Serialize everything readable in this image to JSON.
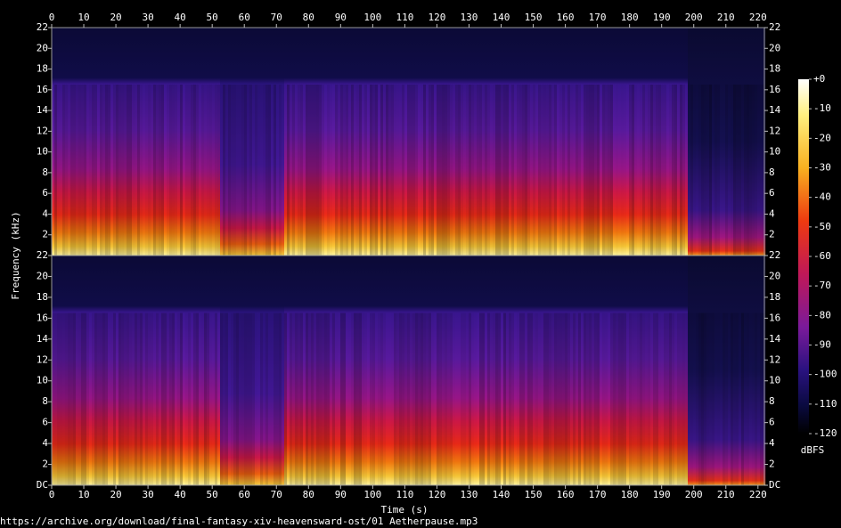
{
  "chart_data": [
    {
      "type": "spectrogram",
      "xlim": [
        0,
        222
      ],
      "xticks": [
        0,
        10,
        20,
        30,
        40,
        50,
        60,
        70,
        80,
        90,
        100,
        110,
        120,
        130,
        140,
        150,
        160,
        170,
        180,
        190,
        200,
        210,
        220
      ],
      "ylim": [
        0,
        22
      ],
      "yticks": [
        2,
        4,
        6,
        8,
        10,
        12,
        14,
        16,
        18,
        20,
        22
      ],
      "y_label": "Frequency (kHz)"
    },
    {
      "type": "spectrogram",
      "xlim": [
        0,
        222
      ],
      "xticks": [
        0,
        10,
        20,
        30,
        40,
        50,
        60,
        70,
        80,
        90,
        100,
        110,
        120,
        130,
        140,
        150,
        160,
        170,
        180,
        190,
        200,
        210,
        220
      ],
      "ylim": [
        0,
        22
      ],
      "yticks": [
        {
          "value": 0,
          "label": "DC"
        },
        2,
        4,
        6,
        8,
        10,
        12,
        14,
        16,
        18,
        20,
        22
      ],
      "x_label": "Time (s)"
    },
    {
      "type": "colorbar",
      "ylim": [
        -120,
        0
      ],
      "yticks": [
        {
          "value": 0,
          "label": "+0"
        },
        -10,
        -20,
        -30,
        -40,
        -50,
        -60,
        -70,
        -80,
        -90,
        -100,
        -110,
        -120
      ],
      "label": "dBFS"
    }
  ],
  "source": "https://archive.org/download/final-fantasy-xiv-heavensward-ost/01 Aetherpause.mp3"
}
